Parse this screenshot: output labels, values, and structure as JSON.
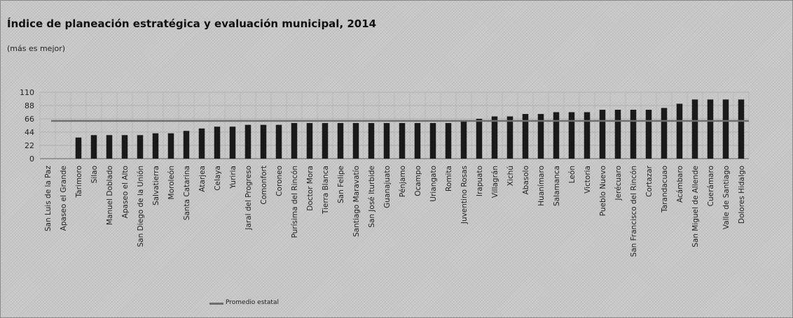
{
  "chart_data": {
    "type": "bar",
    "title": "Índice de planeación estratégica y evaluación municipal, 2014",
    "subtitle": "(más es mejor)",
    "categories": [
      "San Luis de la Paz",
      "Apaseo el Grande",
      "Tarimoro",
      "Silao",
      "Manuel Doblado",
      "Apaseo el Alto",
      "San Diego de la Unión",
      "Salvatierra",
      "Moroleón",
      "Santa Catarina",
      "Atarjea",
      "Celaya",
      "Yuriria",
      "Jaral del Progreso",
      "Comonfort",
      "Coroneo",
      "Purísima del Rincón",
      "Doctor Mora",
      "Tierra Blanca",
      "San Felipe",
      "Santiago Maravatío",
      "San José Iturbide",
      "Guanajuato",
      "Pénjamo",
      "Ocampo",
      "Uriangato",
      "Romita",
      "Juventino Rosas",
      "Irapuato",
      "Villagrán",
      "Xichú",
      "Abasolo",
      "Huanímaro",
      "Salamanca",
      "León",
      "Victoria",
      "Pueblo Nuevo",
      "Jerécuaro",
      "San Francisco del Rincón",
      "Cortazar",
      "Tarandacuao",
      "Acámbaro",
      "San Miguel de Allende",
      "Cuerámaro",
      "Valle de Santiago",
      "Dolores Hidalgo"
    ],
    "series": [
      {
        "values": [
          0,
          0,
          35,
          39,
          39,
          39,
          39,
          42,
          42,
          46,
          50,
          53,
          53,
          56,
          56,
          56,
          59,
          59,
          59,
          59,
          59,
          59,
          59,
          59,
          59,
          59,
          59,
          63,
          66,
          70,
          70,
          74,
          74,
          77,
          77,
          77,
          81,
          81,
          81,
          81,
          84,
          91,
          98,
          98,
          98,
          98
        ]
      }
    ],
    "reference_line": {
      "name": "Promedio estatal",
      "value": 62.5
    },
    "ylim": [
      0,
      110
    ],
    "yticks": [
      0,
      22,
      44,
      66,
      88,
      110
    ],
    "grid": true,
    "legend_position": "bottom-left",
    "colors": {
      "bar": "#1a1a1a",
      "average": "#6e6e6e",
      "grid": "#a9a9a9"
    }
  },
  "legend": {
    "average_label": "Promedio estatal"
  }
}
